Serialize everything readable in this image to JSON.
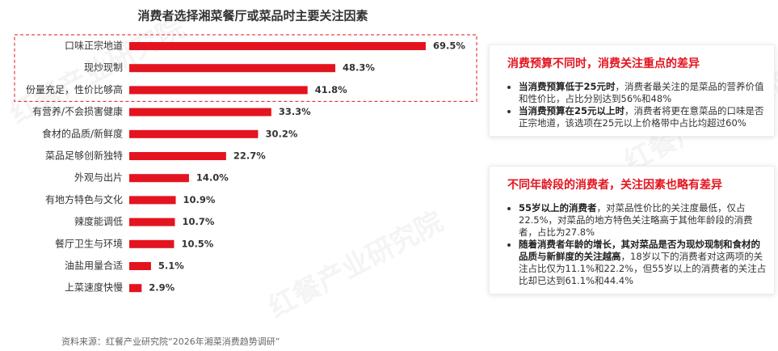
{
  "chart_data": {
    "type": "bar",
    "orientation": "horizontal",
    "title": "消费者选择湘菜餐厅或菜品时主要关注因素",
    "categories": [
      "口味正宗地道",
      "现炒现制",
      "份量充足，性价比够高",
      "有营养/不会损害健康",
      "食材的品质/新鲜度",
      "菜品足够创新独特",
      "外观与出片",
      "有地方特色与文化",
      "辣度能调低",
      "餐厅卫生与环境",
      "油盐用量合适",
      "上菜速度快慢"
    ],
    "values": [
      69.5,
      48.3,
      41.8,
      33.3,
      30.2,
      22.7,
      14.0,
      10.9,
      10.7,
      10.5,
      5.1,
      2.9
    ],
    "value_labels": [
      "69.5%",
      "48.3%",
      "41.8%",
      "33.3%",
      "30.2%",
      "22.7%",
      "14.0%",
      "10.9%",
      "10.7%",
      "10.5%",
      "5.1%",
      "2.9%"
    ],
    "color": "#e3141f",
    "highlight_count": 3
  },
  "notes": [
    {
      "title": "消费预算不同时，消费关注重点的差异",
      "bullets": [
        {
          "bold": "当消费预算低于25元时",
          "text": "，消费者最关注的是菜品的营养价值和性价比，占比分别达到56%和48%"
        },
        {
          "bold": "当消费预算在25元以上时",
          "text": "，消费者将更在意菜品的口味是否正宗地道，该选项在25元以上价格带中占比均超过60%"
        }
      ]
    },
    {
      "title": "不同年龄段的消费者，关注因素也略有差异",
      "bullets": [
        {
          "bold": "55岁以上的消费者",
          "text": "，对菜品性价比的关注度最低，仅占22.5%，对菜品的地方特色关注略高于其他年龄段的消费者，占比为27.8%"
        },
        {
          "bold": "随着消费者年龄的增长，其对菜品是否为现炒现制和食材的品质与新鲜度的关注越高",
          "text": "，18岁以下的消费者对这两项的关注占比仅为11.1%和22.2%，但55岁以上的消费者的关注占比却已达到61.1%和44.4%"
        }
      ]
    }
  ],
  "source": "资料来源：红餐产业研究院“2026年湘菜消费趋势调研”",
  "watermark": "红餐产业研究院"
}
